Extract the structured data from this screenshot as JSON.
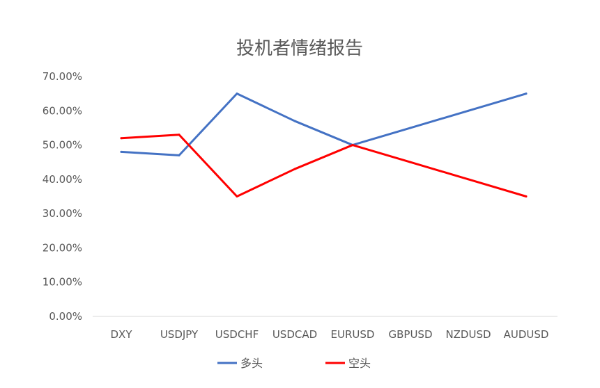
{
  "chart_data": {
    "type": "line",
    "title": "投机者情绪报告",
    "categories": [
      "DXY",
      "USDJPY",
      "USDCHF",
      "USDCAD",
      "EURUSD",
      "GBPUSD",
      "NZDUSD",
      "AUDUSD"
    ],
    "series": [
      {
        "name": "多头",
        "color": "#4472C4",
        "values": [
          48,
          47,
          65,
          57,
          50,
          55,
          60,
          65
        ]
      },
      {
        "name": "空头",
        "color": "#FF0000",
        "values": [
          52,
          53,
          35,
          43,
          50,
          45,
          40,
          35
        ]
      }
    ],
    "ylim": [
      0,
      70
    ],
    "yticks": [
      "0.00%",
      "10.00%",
      "20.00%",
      "30.00%",
      "40.00%",
      "50.00%",
      "60.00%",
      "70.00%"
    ],
    "grid": false,
    "legend_position": "bottom"
  }
}
